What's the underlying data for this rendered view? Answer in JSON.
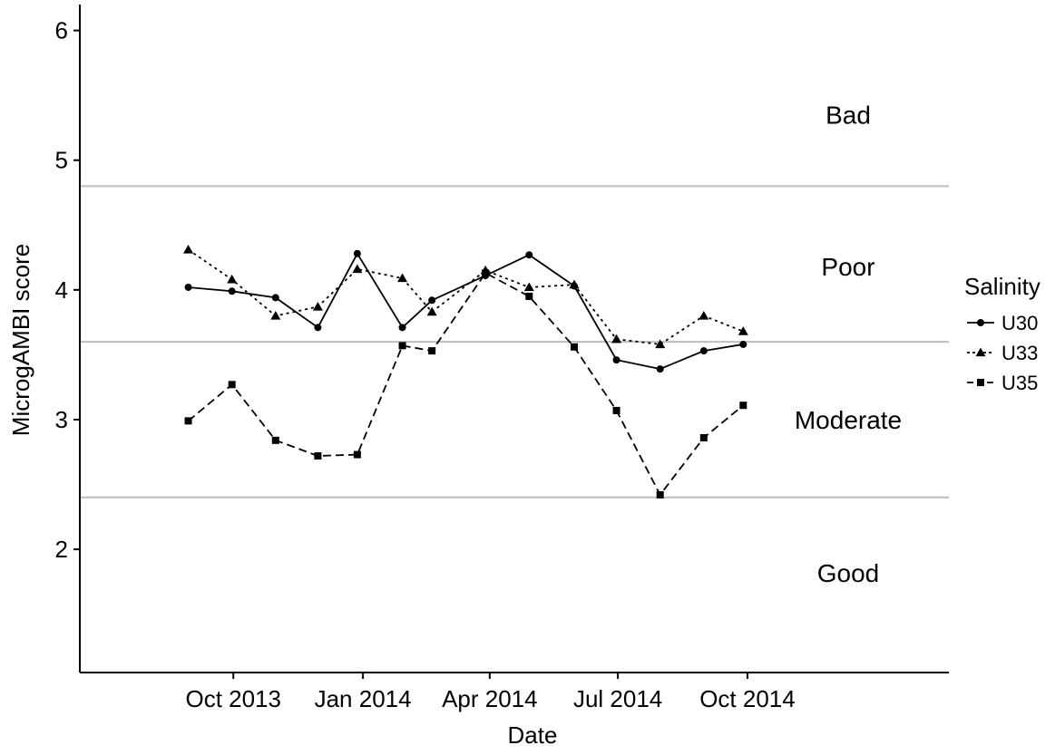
{
  "chart_data": {
    "type": "line",
    "xlabel": "Date",
    "ylabel": "MicrogAMBI score",
    "ylim": [
      1.05,
      6.2
    ],
    "xlim": [
      "2013-06-14",
      "2015-02-21"
    ],
    "x_ticks": [
      {
        "date": "2013-10-01",
        "label": "Oct 2013"
      },
      {
        "date": "2014-01-01",
        "label": "Jan 2014"
      },
      {
        "date": "2014-04-01",
        "label": "Apr 2014"
      },
      {
        "date": "2014-07-01",
        "label": "Jul 2014"
      },
      {
        "date": "2014-10-01",
        "label": "Oct 2014"
      }
    ],
    "y_ticks": [
      2,
      3,
      4,
      5,
      6
    ],
    "grid": false,
    "thresholds": [
      2.4,
      3.6,
      4.8
    ],
    "threshold_color": "#bdbdbd",
    "zones": [
      {
        "label": "Bad",
        "y": 5.35
      },
      {
        "label": "Poor",
        "y": 4.18
      },
      {
        "label": "Moderate",
        "y": 3.0
      },
      {
        "label": "Good",
        "y": 1.82
      }
    ],
    "legend_title": "Salinity",
    "legend_position": "right",
    "x": [
      "2013-08-30",
      "2013-09-30",
      "2013-10-31",
      "2013-11-30",
      "2013-12-28",
      "2014-01-29",
      "2014-02-19",
      "2014-03-29",
      "2014-04-29",
      "2014-05-31",
      "2014-06-30",
      "2014-07-31",
      "2014-08-31",
      "2014-09-28"
    ],
    "series": [
      {
        "name": "U30",
        "dash": "",
        "marker": "circle",
        "values": [
          4.02,
          3.99,
          3.94,
          3.71,
          4.28,
          3.71,
          3.92,
          4.11,
          4.27,
          4.03,
          3.46,
          3.39,
          3.53,
          3.58
        ]
      },
      {
        "name": "U33",
        "dash": "3,4",
        "marker": "triangle",
        "values": [
          4.31,
          4.08,
          3.8,
          3.87,
          4.16,
          4.09,
          3.83,
          4.15,
          4.02,
          4.04,
          3.62,
          3.58,
          3.8,
          3.68
        ]
      },
      {
        "name": "U35",
        "dash": "9,5",
        "marker": "square",
        "values": [
          2.99,
          3.27,
          2.84,
          2.72,
          2.73,
          3.57,
          3.53,
          4.13,
          3.95,
          3.56,
          3.07,
          2.42,
          2.86,
          3.11
        ]
      }
    ]
  }
}
